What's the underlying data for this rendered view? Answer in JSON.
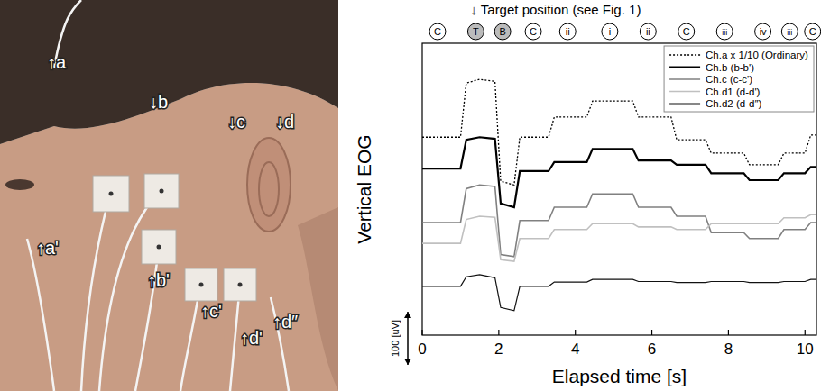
{
  "chart_data": {
    "type": "line",
    "x_label": "Elapsed time [s]",
    "y_label": "Vertical EOG",
    "xlim": [
      0,
      10.3
    ],
    "xticks": [
      0,
      2,
      4,
      6,
      8,
      10
    ],
    "ylim": [
      0,
      550
    ],
    "tick_labels": "x",
    "grid": false,
    "legend": "upper right",
    "scale_bar": {
      "value": 100,
      "label": "100 [uV]"
    },
    "targets": {
      "title": "↓ Target position (see Fig. 1)",
      "x": [
        0.4,
        1.4,
        2.1,
        2.9,
        3.8,
        4.9,
        5.9,
        6.9,
        7.9,
        8.9,
        9.6,
        10.2
      ],
      "labels": [
        "C",
        "T",
        "B",
        "C",
        "ii",
        "i",
        "ii",
        "C",
        "iii",
        "iv",
        "iii",
        "C"
      ],
      "colors": [
        "#ffffff",
        "#bbbbbb",
        "#bbbbbb",
        "#ffffff",
        "#ffffff",
        "#ffffff",
        "#ffffff",
        "#ffffff",
        "#ffffff",
        "#ffffff",
        "#ffffff",
        "#ffffff"
      ]
    },
    "x": [
      0,
      1.0,
      1.15,
      1.5,
      1.9,
      2.05,
      2.4,
      2.55,
      3.3,
      3.45,
      4.3,
      4.45,
      5.5,
      5.65,
      6.5,
      6.65,
      7.4,
      7.55,
      8.4,
      8.55,
      9.3,
      9.45,
      10.0,
      10.15,
      10.3
    ],
    "series": [
      {
        "name": "Ch.a x 1/10 (Ordinary)",
        "color": "#000000",
        "line_style": "dotted",
        "values": [
          373,
          373,
          475,
          482,
          478,
          290,
          283,
          373,
          373,
          411,
          411,
          441,
          441,
          411,
          411,
          368,
          368,
          343,
          343,
          321,
          321,
          343,
          343,
          377,
          377
        ]
      },
      {
        "name": "Ch.b (b-b')",
        "color": "#000000",
        "line_style": "solid",
        "values": [
          314,
          314,
          368,
          373,
          370,
          248,
          241,
          309,
          309,
          326,
          326,
          351,
          351,
          329,
          329,
          321,
          321,
          305,
          305,
          292,
          292,
          305,
          305,
          317,
          317
        ]
      },
      {
        "name": "Ch.c (c-c')",
        "color": "#808080",
        "line_style": "solid",
        "values": [
          212,
          212,
          276,
          283,
          280,
          152,
          148,
          216,
          216,
          241,
          241,
          266,
          266,
          241,
          241,
          224,
          224,
          193,
          193,
          182,
          182,
          199,
          199,
          212,
          212
        ]
      },
      {
        "name": "Ch.d1 (d-d')",
        "color": "#c0c0c0",
        "line_style": "solid",
        "values": [
          173,
          173,
          218,
          224,
          222,
          142,
          139,
          182,
          182,
          199,
          199,
          210,
          210,
          204,
          204,
          199,
          199,
          210,
          210,
          210,
          210,
          221,
          221,
          227,
          227
        ]
      },
      {
        "name": "Ch.d2 (d-d″)",
        "color": "#111111",
        "line_style": "solid",
        "values": [
          92,
          92,
          110,
          114,
          108,
          52,
          46,
          92,
          92,
          100,
          100,
          105,
          105,
          101,
          101,
          99,
          99,
          101,
          101,
          99,
          99,
          101,
          101,
          105,
          105
        ]
      }
    ]
  },
  "photo": {
    "labels": [
      "↑a",
      "↑a'",
      "↓b",
      "↑b'",
      "↓c",
      "↑c'",
      "↓d",
      "↑d'",
      "↑d″"
    ]
  }
}
